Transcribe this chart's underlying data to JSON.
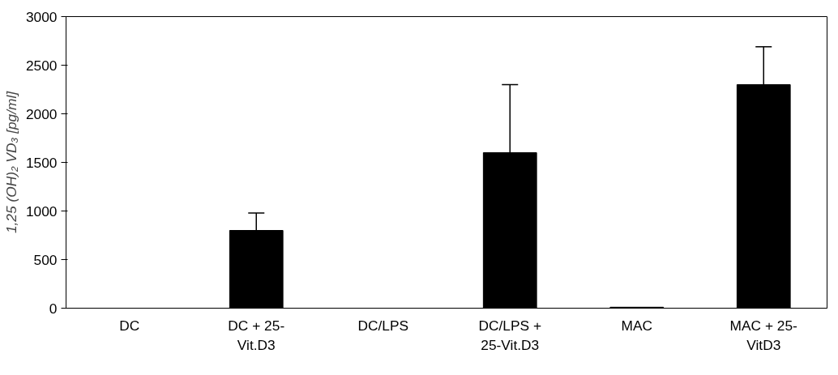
{
  "chart_data": {
    "type": "bar",
    "ylabel": "1,25 (OH)₂ VD₃ [pg/ml]",
    "categories": [
      "DC",
      "DC + 25-\nVit.D3",
      "DC/LPS",
      "DC/LPS +\n25-Vit.D3",
      "MAC",
      "MAC + 25-\nVitD3"
    ],
    "values": [
      0,
      800,
      0,
      1600,
      10,
      2300
    ],
    "errors": [
      null,
      [
        800,
        980
      ],
      null,
      [
        1600,
        2300
      ],
      null,
      [
        2300,
        2690
      ]
    ],
    "color": "#000000",
    "ylim": [
      0,
      3000
    ],
    "yticks": [
      0,
      500,
      1000,
      1500,
      2000,
      2500,
      3000
    ],
    "grid": false
  }
}
